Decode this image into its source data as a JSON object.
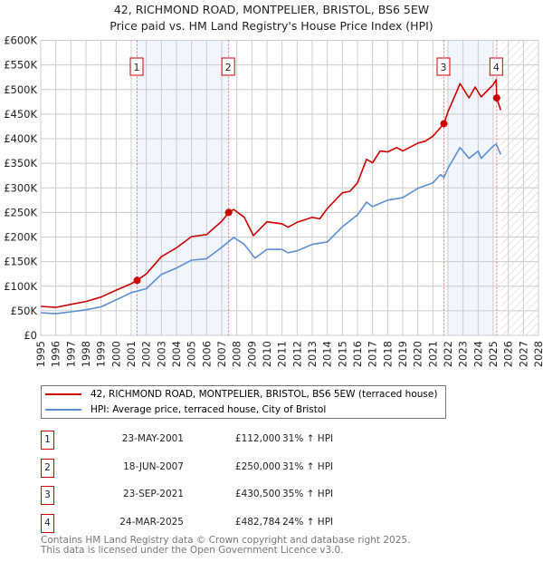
{
  "header": {
    "title": "42, RICHMOND ROAD, MONTPELIER, BRISTOL, BS6 5EW",
    "subtitle": "Price paid vs. HM Land Registry's House Price Index (HPI)"
  },
  "chart_data": {
    "type": "line",
    "title": "42, RICHMOND ROAD, MONTPELIER, BRISTOL, BS6 5EW",
    "subtitle": "Price paid vs. HM Land Registry's House Price Index (HPI)",
    "xlim": [
      1995,
      2028
    ],
    "ylim": [
      0,
      600000
    ],
    "x_ticks": [
      "1995",
      "1996",
      "1997",
      "1998",
      "1999",
      "2000",
      "2001",
      "2002",
      "2003",
      "2004",
      "2005",
      "2006",
      "2007",
      "2008",
      "2009",
      "2010",
      "2011",
      "2012",
      "2013",
      "2014",
      "2015",
      "2016",
      "2017",
      "2018",
      "2019",
      "2020",
      "2021",
      "2022",
      "2023",
      "2024",
      "2025",
      "2026",
      "2027",
      "2028"
    ],
    "y_ticks": [
      {
        "v": 0,
        "label": "£0"
      },
      {
        "v": 50000,
        "label": "£50K"
      },
      {
        "v": 100000,
        "label": "£100K"
      },
      {
        "v": 150000,
        "label": "£150K"
      },
      {
        "v": 200000,
        "label": "£200K"
      },
      {
        "v": 250000,
        "label": "£250K"
      },
      {
        "v": 300000,
        "label": "£300K"
      },
      {
        "v": 350000,
        "label": "£350K"
      },
      {
        "v": 400000,
        "label": "£400K"
      },
      {
        "v": 450000,
        "label": "£450K"
      },
      {
        "v": 500000,
        "label": "£500K"
      },
      {
        "v": 550000,
        "label": "£550K"
      },
      {
        "v": 600000,
        "label": "£600K"
      }
    ],
    "grid": true,
    "shaded_periods": [
      [
        2001.39,
        2007.46
      ],
      [
        2022.0,
        2025.0
      ]
    ],
    "projection_from": 2025.5,
    "series": [
      {
        "name": "42, RICHMOND ROAD, MONTPELIER, BRISTOL, BS6 5EW (terraced house)",
        "color": "#cc0000",
        "x": [
          1995,
          1996,
          1997,
          1998,
          1999,
          2000,
          2001,
          2001.39,
          2002,
          2003,
          2004,
          2005,
          2006,
          2007,
          2007.46,
          2007.8,
          2008.5,
          2009.1,
          2010,
          2011,
          2011.4,
          2012,
          2013,
          2013.5,
          2014,
          2015,
          2015.5,
          2016,
          2016.6,
          2017,
          2017.5,
          2018,
          2018.6,
          2019,
          2020,
          2020.5,
          2021,
          2021.73,
          2022,
          2022.5,
          2022.8,
          2023.4,
          2023.8,
          2024.2,
          2025,
          2025.2,
          2025.23,
          2025.5
        ],
        "y": [
          59000,
          57000,
          63000,
          69000,
          78000,
          92000,
          105000,
          112000,
          125000,
          160000,
          178000,
          201000,
          205000,
          232000,
          250000,
          256000,
          240000,
          203000,
          231000,
          227000,
          220000,
          230000,
          240000,
          237000,
          258000,
          290000,
          293000,
          310000,
          358000,
          351000,
          375000,
          373000,
          382000,
          375000,
          391000,
          395000,
          405000,
          430500,
          455000,
          490000,
          512000,
          483000,
          505000,
          485000,
          510000,
          520000,
          482784,
          458000
        ]
      },
      {
        "name": "HPI: Average price, terraced house, City of Bristol",
        "color": "#5b8fd4",
        "x": [
          1995,
          1996,
          1997,
          1998,
          1999,
          2000,
          2001,
          2002,
          2003,
          2004,
          2005,
          2006,
          2007,
          2007.8,
          2008.5,
          2009.2,
          2010,
          2011,
          2011.4,
          2012,
          2013,
          2014,
          2015,
          2016,
          2016.6,
          2017,
          2018,
          2019,
          2020,
          2021,
          2021.5,
          2021.73,
          2022,
          2022.8,
          2023.4,
          2024,
          2024.2,
          2025,
          2025.2,
          2025.5
        ],
        "y": [
          46000,
          44000,
          48000,
          52000,
          58000,
          72000,
          87000,
          95000,
          124000,
          137000,
          153000,
          156000,
          179000,
          199000,
          185000,
          157000,
          175000,
          175000,
          168000,
          172000,
          185000,
          190000,
          221000,
          245000,
          271000,
          262000,
          275000,
          280000,
          299000,
          310000,
          327000,
          321000,
          340000,
          382000,
          360000,
          375000,
          360000,
          385000,
          389000,
          368000
        ]
      }
    ],
    "sales": [
      {
        "num": "1",
        "x": 2001.39,
        "price": 112000,
        "date": "23-MAY-2001",
        "price_label": "£112,000",
        "hpi": "31% ↑ HPI"
      },
      {
        "num": "2",
        "x": 2007.46,
        "price": 250000,
        "date": "18-JUN-2007",
        "price_label": "£250,000",
        "hpi": "31% ↑ HPI"
      },
      {
        "num": "3",
        "x": 2021.73,
        "price": 430500,
        "date": "23-SEP-2021",
        "price_label": "£430,500",
        "hpi": "35% ↑ HPI"
      },
      {
        "num": "4",
        "x": 2025.23,
        "price": 482784,
        "date": "24-MAR-2025",
        "price_label": "£482,784",
        "hpi": "24% ↑ HPI"
      }
    ]
  },
  "legend": {
    "property": "42, RICHMOND ROAD, MONTPELIER, BRISTOL, BS6 5EW (terraced house)",
    "hpi": "HPI: Average price, terraced house, City of Bristol"
  },
  "footer": {
    "line1": "Contains HM Land Registry data © Crown copyright and database right 2025.",
    "line2": "This data is licensed under the Open Government Licence v3.0."
  }
}
